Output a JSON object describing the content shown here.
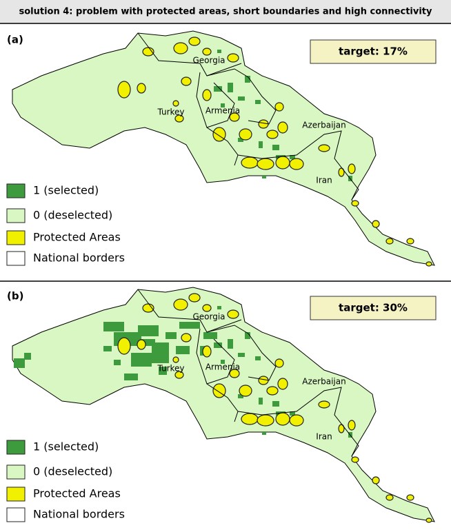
{
  "header": {
    "title": "solution 4: problem with protected areas, short boundaries and high connectivity"
  },
  "panels": [
    {
      "label": "(a)",
      "target": "target: 17%",
      "countries": {
        "georgia": "Georgia",
        "turkey": "Turkey",
        "armenia": "Armenia",
        "azerbaijan": "Azerbaijan",
        "iran": "Iran"
      },
      "legend": [
        "1 (selected)",
        "0 (deselected)",
        "Protected Areas",
        "National borders"
      ]
    },
    {
      "label": "(b)",
      "target": "target: 30%",
      "countries": {
        "georgia": "Georgia",
        "turkey": "Turkey",
        "armenia": "Armenia",
        "azerbaijan": "Azerbaijan",
        "iran": "Iran"
      },
      "legend": [
        "1 (selected)",
        "0 (deselected)",
        "Protected Areas",
        "National borders"
      ]
    }
  ]
}
